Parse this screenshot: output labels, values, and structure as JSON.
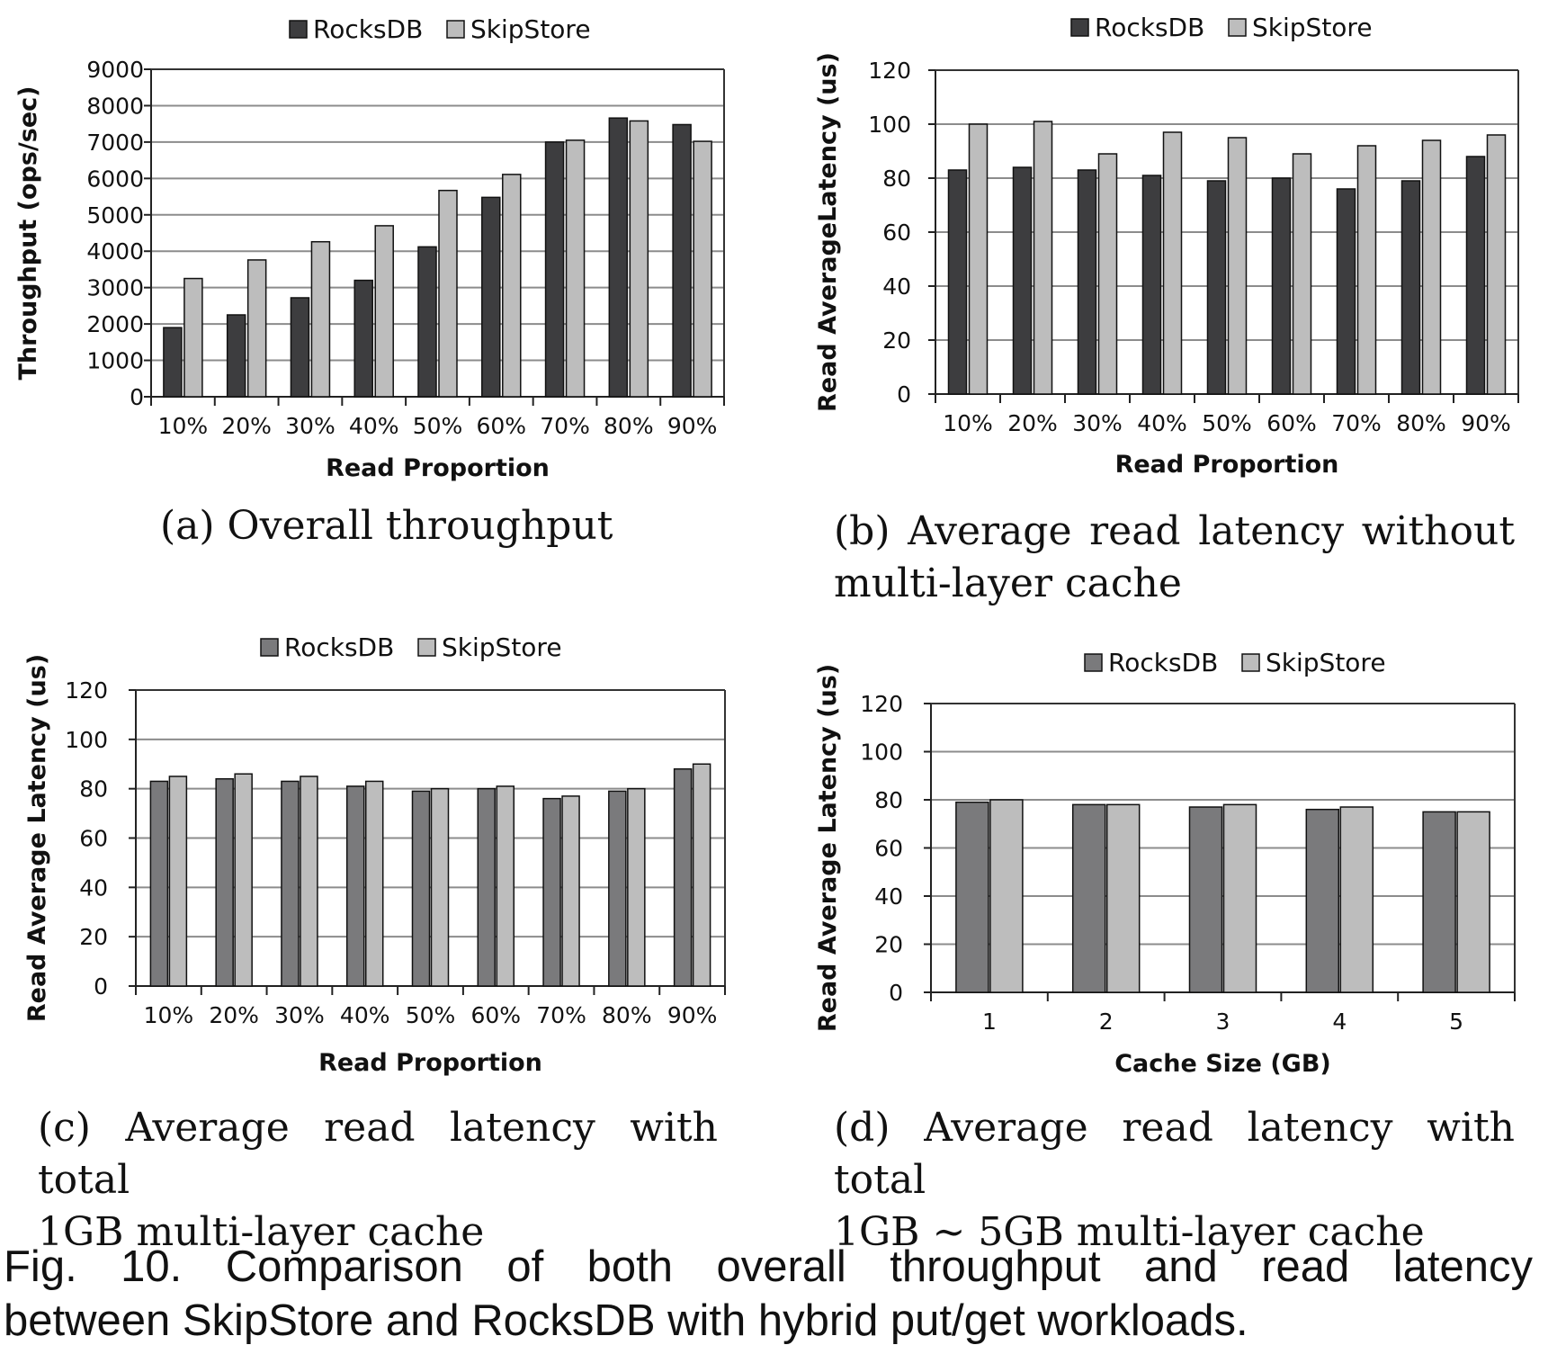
{
  "legend": {
    "rocksdb": "RocksDB",
    "skipstore": "SkipStore"
  },
  "colors": {
    "rocksdb_dark": "#3d3d3f",
    "rocksdb_mid": "#7a7a7c",
    "skipstore": "#bdbdbd",
    "grid": "#8c8c8c"
  },
  "subcaptions": {
    "a": {
      "line1": "(a)  Overall throughput",
      "line2": ""
    },
    "b": {
      "line1": "(b)  Average read latency without",
      "line2": "multi-layer cache"
    },
    "c": {
      "line1": "(c)  Average read latency with total",
      "line2": "1GB multi-layer cache"
    },
    "d": {
      "line1": "(d)  Average read latency with total",
      "line2": "1GB ∼ 5GB multi-layer cache"
    }
  },
  "caption": {
    "line1": "Fig. 10. Comparison of both overall throughput and read latency",
    "line2": "between SkipStore and RocksDB with hybrid put/get workloads."
  },
  "chart_data": [
    {
      "id": "a",
      "type": "bar",
      "categories": [
        "10%",
        "20%",
        "30%",
        "40%",
        "50%",
        "60%",
        "70%",
        "80%",
        "90%"
      ],
      "series": [
        {
          "name": "RocksDB",
          "values": [
            1900,
            2250,
            2720,
            3200,
            4120,
            5480,
            7000,
            7660,
            7480
          ]
        },
        {
          "name": "SkipStore",
          "values": [
            3250,
            3760,
            4260,
            4700,
            5670,
            6110,
            7050,
            7580,
            7020
          ]
        }
      ],
      "xlabel": "Read Proportion",
      "ylabel": "Throughput (ops/sec)",
      "ylim": [
        0,
        9000
      ],
      "yticks": [
        0,
        1000,
        2000,
        3000,
        4000,
        5000,
        6000,
        7000,
        8000,
        9000
      ],
      "grid": true,
      "legend": "top-center"
    },
    {
      "id": "b",
      "type": "bar",
      "categories": [
        "10%",
        "20%",
        "30%",
        "40%",
        "50%",
        "60%",
        "70%",
        "80%",
        "90%"
      ],
      "series": [
        {
          "name": "RocksDB",
          "values": [
            83,
            84,
            83,
            81,
            79,
            80,
            76,
            79,
            88
          ]
        },
        {
          "name": "SkipStore",
          "values": [
            100,
            101,
            89,
            97,
            95,
            89,
            92,
            94,
            96
          ]
        }
      ],
      "xlabel": "Read Proportion",
      "ylabel": "Read AverageLatency (us)",
      "ylim": [
        0,
        120
      ],
      "yticks": [
        0,
        20,
        40,
        60,
        80,
        100,
        120
      ],
      "grid": true,
      "legend": "top-center"
    },
    {
      "id": "c",
      "type": "bar",
      "categories": [
        "10%",
        "20%",
        "30%",
        "40%",
        "50%",
        "60%",
        "70%",
        "80%",
        "90%"
      ],
      "series": [
        {
          "name": "RocksDB",
          "values": [
            83,
            84,
            83,
            81,
            79,
            80,
            76,
            79,
            88
          ]
        },
        {
          "name": "SkipStore",
          "values": [
            85,
            86,
            85,
            83,
            80,
            81,
            77,
            80,
            90
          ]
        }
      ],
      "xlabel": "Read Proportion",
      "ylabel": "Read Average Latency (us)",
      "ylim": [
        0,
        120
      ],
      "yticks": [
        0,
        20,
        40,
        60,
        80,
        100,
        120
      ],
      "grid": true,
      "legend": "top-center"
    },
    {
      "id": "d",
      "type": "bar",
      "categories": [
        "1",
        "2",
        "3",
        "4",
        "5"
      ],
      "series": [
        {
          "name": "RocksDB",
          "values": [
            79,
            78,
            77,
            76,
            75
          ]
        },
        {
          "name": "SkipStore",
          "values": [
            80,
            78,
            78,
            77,
            75
          ]
        }
      ],
      "xlabel": "Cache Size (GB)",
      "ylabel": "Read Average Latency (us)",
      "ylim": [
        0,
        120
      ],
      "yticks": [
        0,
        20,
        40,
        60,
        80,
        100,
        120
      ],
      "grid": true,
      "legend": "top-center"
    }
  ]
}
